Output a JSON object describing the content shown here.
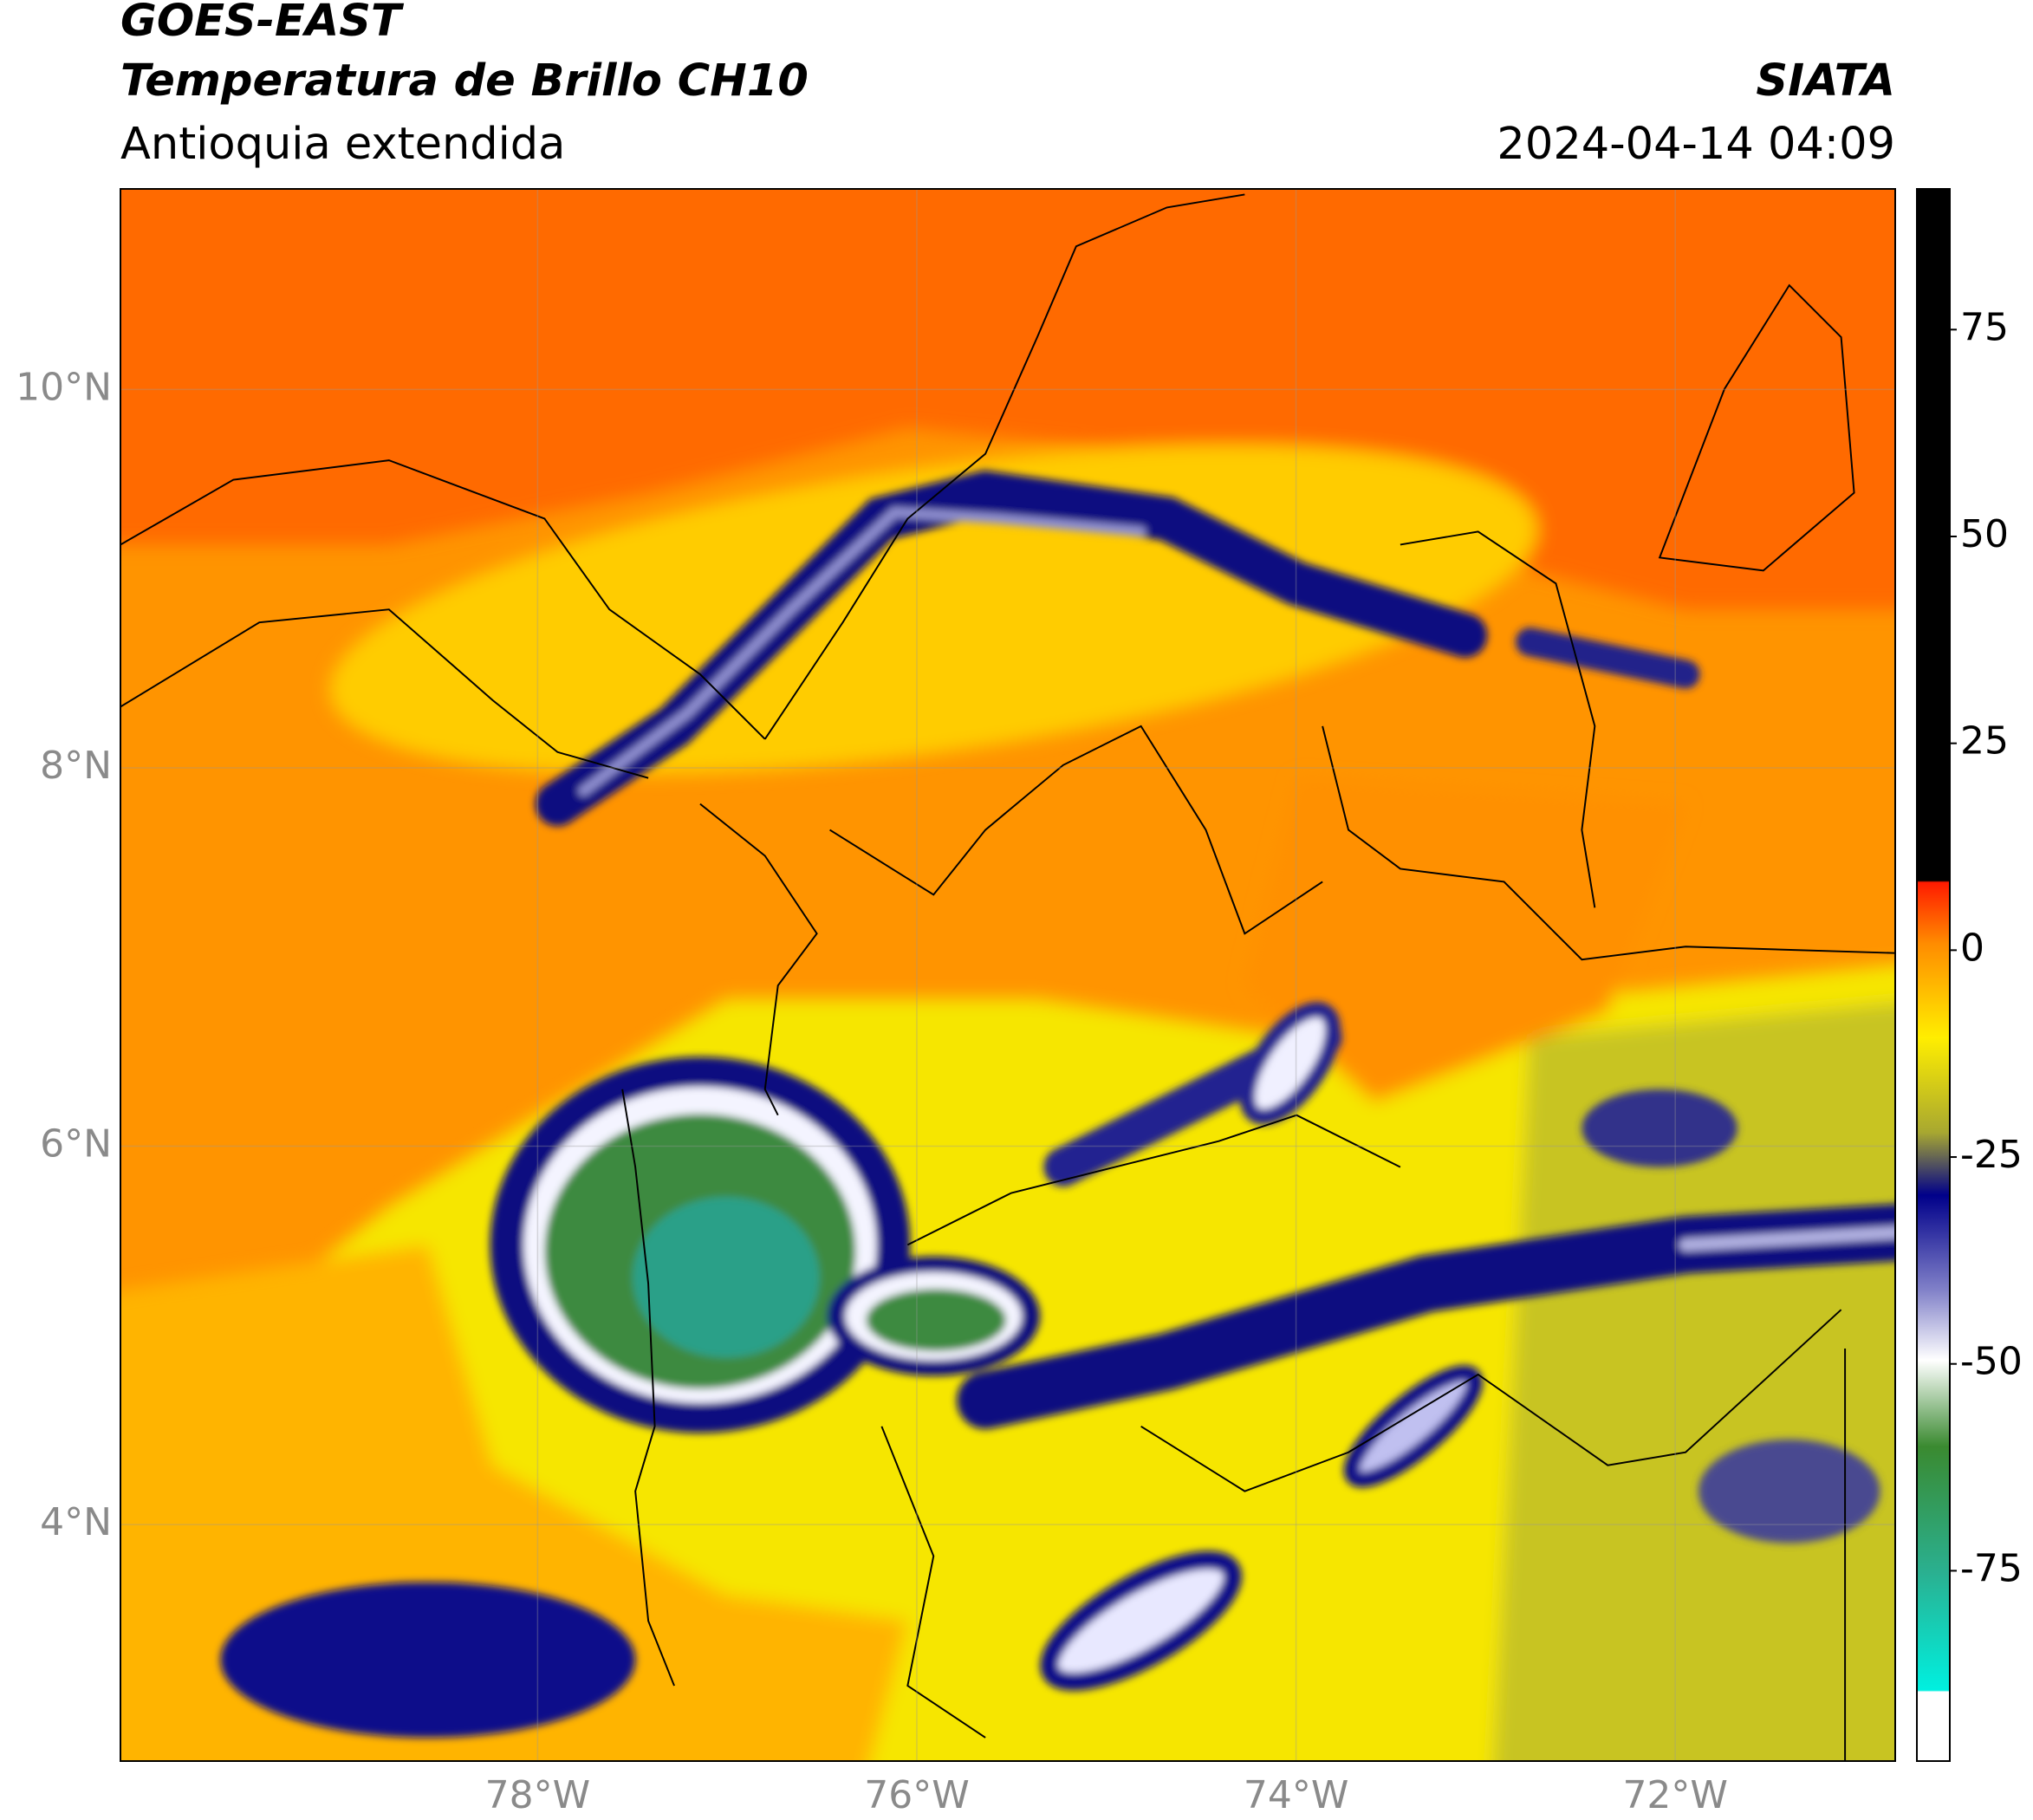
{
  "header": {
    "title": "GOES-EAST",
    "subtitle": "Temperatura de Brillo CH10",
    "region": "Antioquia extendida",
    "source": "SIATA",
    "datetime": "2024-04-14 04:09"
  },
  "map": {
    "xlim": [
      -80.2,
      -70.84
    ],
    "ylim": [
      2.75,
      11.06
    ],
    "xticks": [
      {
        "value": -78,
        "label": "78°W"
      },
      {
        "value": -76,
        "label": "76°W"
      },
      {
        "value": -74,
        "label": "74°W"
      },
      {
        "value": -72,
        "label": "72°W"
      }
    ],
    "yticks": [
      {
        "value": 4,
        "label": "4°N"
      },
      {
        "value": 6,
        "label": "6°N"
      },
      {
        "value": 8,
        "label": "8°N"
      },
      {
        "value": 10,
        "label": "10°N"
      }
    ],
    "grid": true
  },
  "colorbar": {
    "lim": [
      -98,
      92
    ],
    "ticks": [
      75,
      50,
      25,
      0,
      -25,
      -50,
      -75
    ]
  }
}
